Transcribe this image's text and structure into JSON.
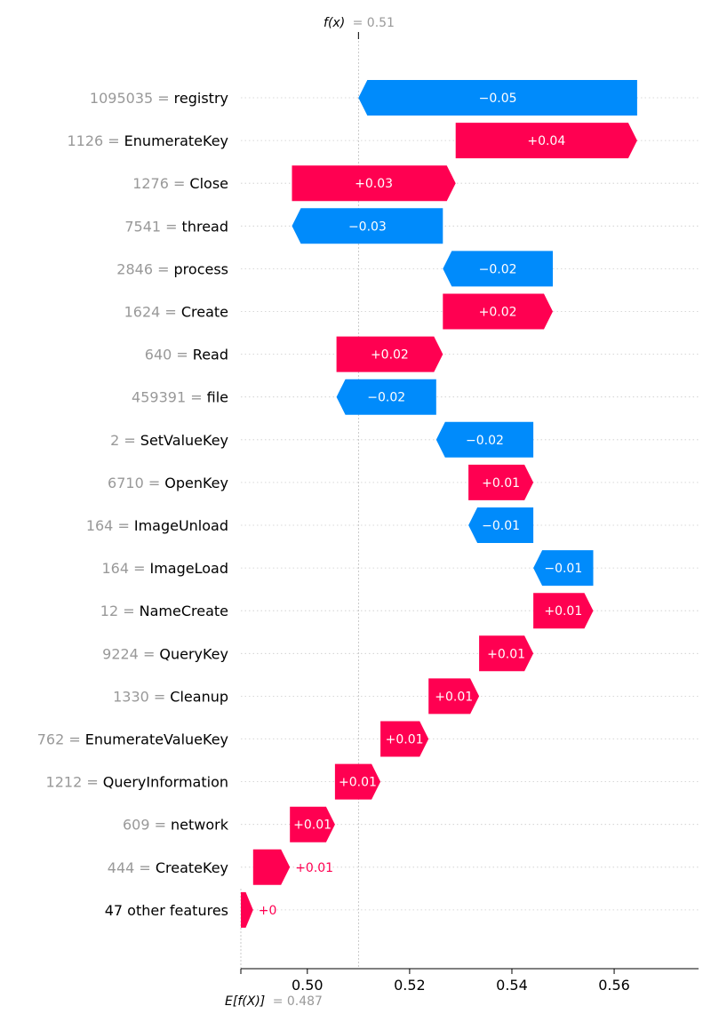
{
  "chart_data": {
    "type": "waterfall",
    "base_value": 0.487,
    "output_value": 0.51,
    "base_label": "E[f(X)]",
    "base_value_text": "= 0.487",
    "output_label": "f(x)",
    "output_value_text": "= 0.51",
    "xlim": [
      0.487,
      0.5765
    ],
    "x_ticks": [
      0.5,
      0.52,
      0.54,
      0.56
    ],
    "x_tick_labels": [
      "0.50",
      "0.52",
      "0.54",
      "0.56"
    ],
    "colors": {
      "positive": "#ff0051",
      "negative": "#008bfb",
      "value_text": "#999999"
    },
    "features": [
      {
        "value_text": "1095035 =",
        "name": "registry",
        "start": 0.5645,
        "end": 0.51,
        "label": "−0.05"
      },
      {
        "value_text": "1126 =",
        "name": "EnumerateKey",
        "start": 0.529,
        "end": 0.5645,
        "label": "+0.04"
      },
      {
        "value_text": "1276 =",
        "name": "Close",
        "start": 0.497,
        "end": 0.529,
        "label": "+0.03"
      },
      {
        "value_text": "7541 =",
        "name": "thread",
        "start": 0.5265,
        "end": 0.497,
        "label": "−0.03"
      },
      {
        "value_text": "2846 =",
        "name": "process",
        "start": 0.548,
        "end": 0.5265,
        "label": "−0.02"
      },
      {
        "value_text": "1624 =",
        "name": "Create",
        "start": 0.5265,
        "end": 0.548,
        "label": "+0.02"
      },
      {
        "value_text": "640 =",
        "name": "Read",
        "start": 0.5057,
        "end": 0.5265,
        "label": "+0.02"
      },
      {
        "value_text": "459391 =",
        "name": "file",
        "start": 0.5252,
        "end": 0.5057,
        "label": "−0.02"
      },
      {
        "value_text": "2 =",
        "name": "SetValueKey",
        "start": 0.5442,
        "end": 0.5252,
        "label": "−0.02"
      },
      {
        "value_text": "6710 =",
        "name": "OpenKey",
        "start": 0.5315,
        "end": 0.5442,
        "label": "+0.01"
      },
      {
        "value_text": "164 =",
        "name": "ImageUnload",
        "start": 0.5442,
        "end": 0.5315,
        "label": "−0.01"
      },
      {
        "value_text": "164 =",
        "name": "ImageLoad",
        "start": 0.5559,
        "end": 0.5442,
        "label": "−0.01"
      },
      {
        "value_text": "12 =",
        "name": "NameCreate",
        "start": 0.5442,
        "end": 0.5559,
        "label": "+0.01"
      },
      {
        "value_text": "9224 =",
        "name": "QueryKey",
        "start": 0.5336,
        "end": 0.5442,
        "label": "+0.01"
      },
      {
        "value_text": "1330 =",
        "name": "Cleanup",
        "start": 0.5237,
        "end": 0.5336,
        "label": "+0.01"
      },
      {
        "value_text": "762 =",
        "name": "EnumerateValueKey",
        "start": 0.5143,
        "end": 0.5237,
        "label": "+0.01"
      },
      {
        "value_text": "1212 =",
        "name": "QueryInformation",
        "start": 0.5054,
        "end": 0.5143,
        "label": "+0.01"
      },
      {
        "value_text": "609 =",
        "name": "network",
        "start": 0.4966,
        "end": 0.5054,
        "label": "+0.01"
      },
      {
        "value_text": "444 =",
        "name": "CreateKey",
        "start": 0.4894,
        "end": 0.4966,
        "label": "+0.01"
      },
      {
        "value_text": "",
        "name": "47 other features",
        "start": 0.487,
        "end": 0.4894,
        "label": "+0"
      }
    ]
  }
}
